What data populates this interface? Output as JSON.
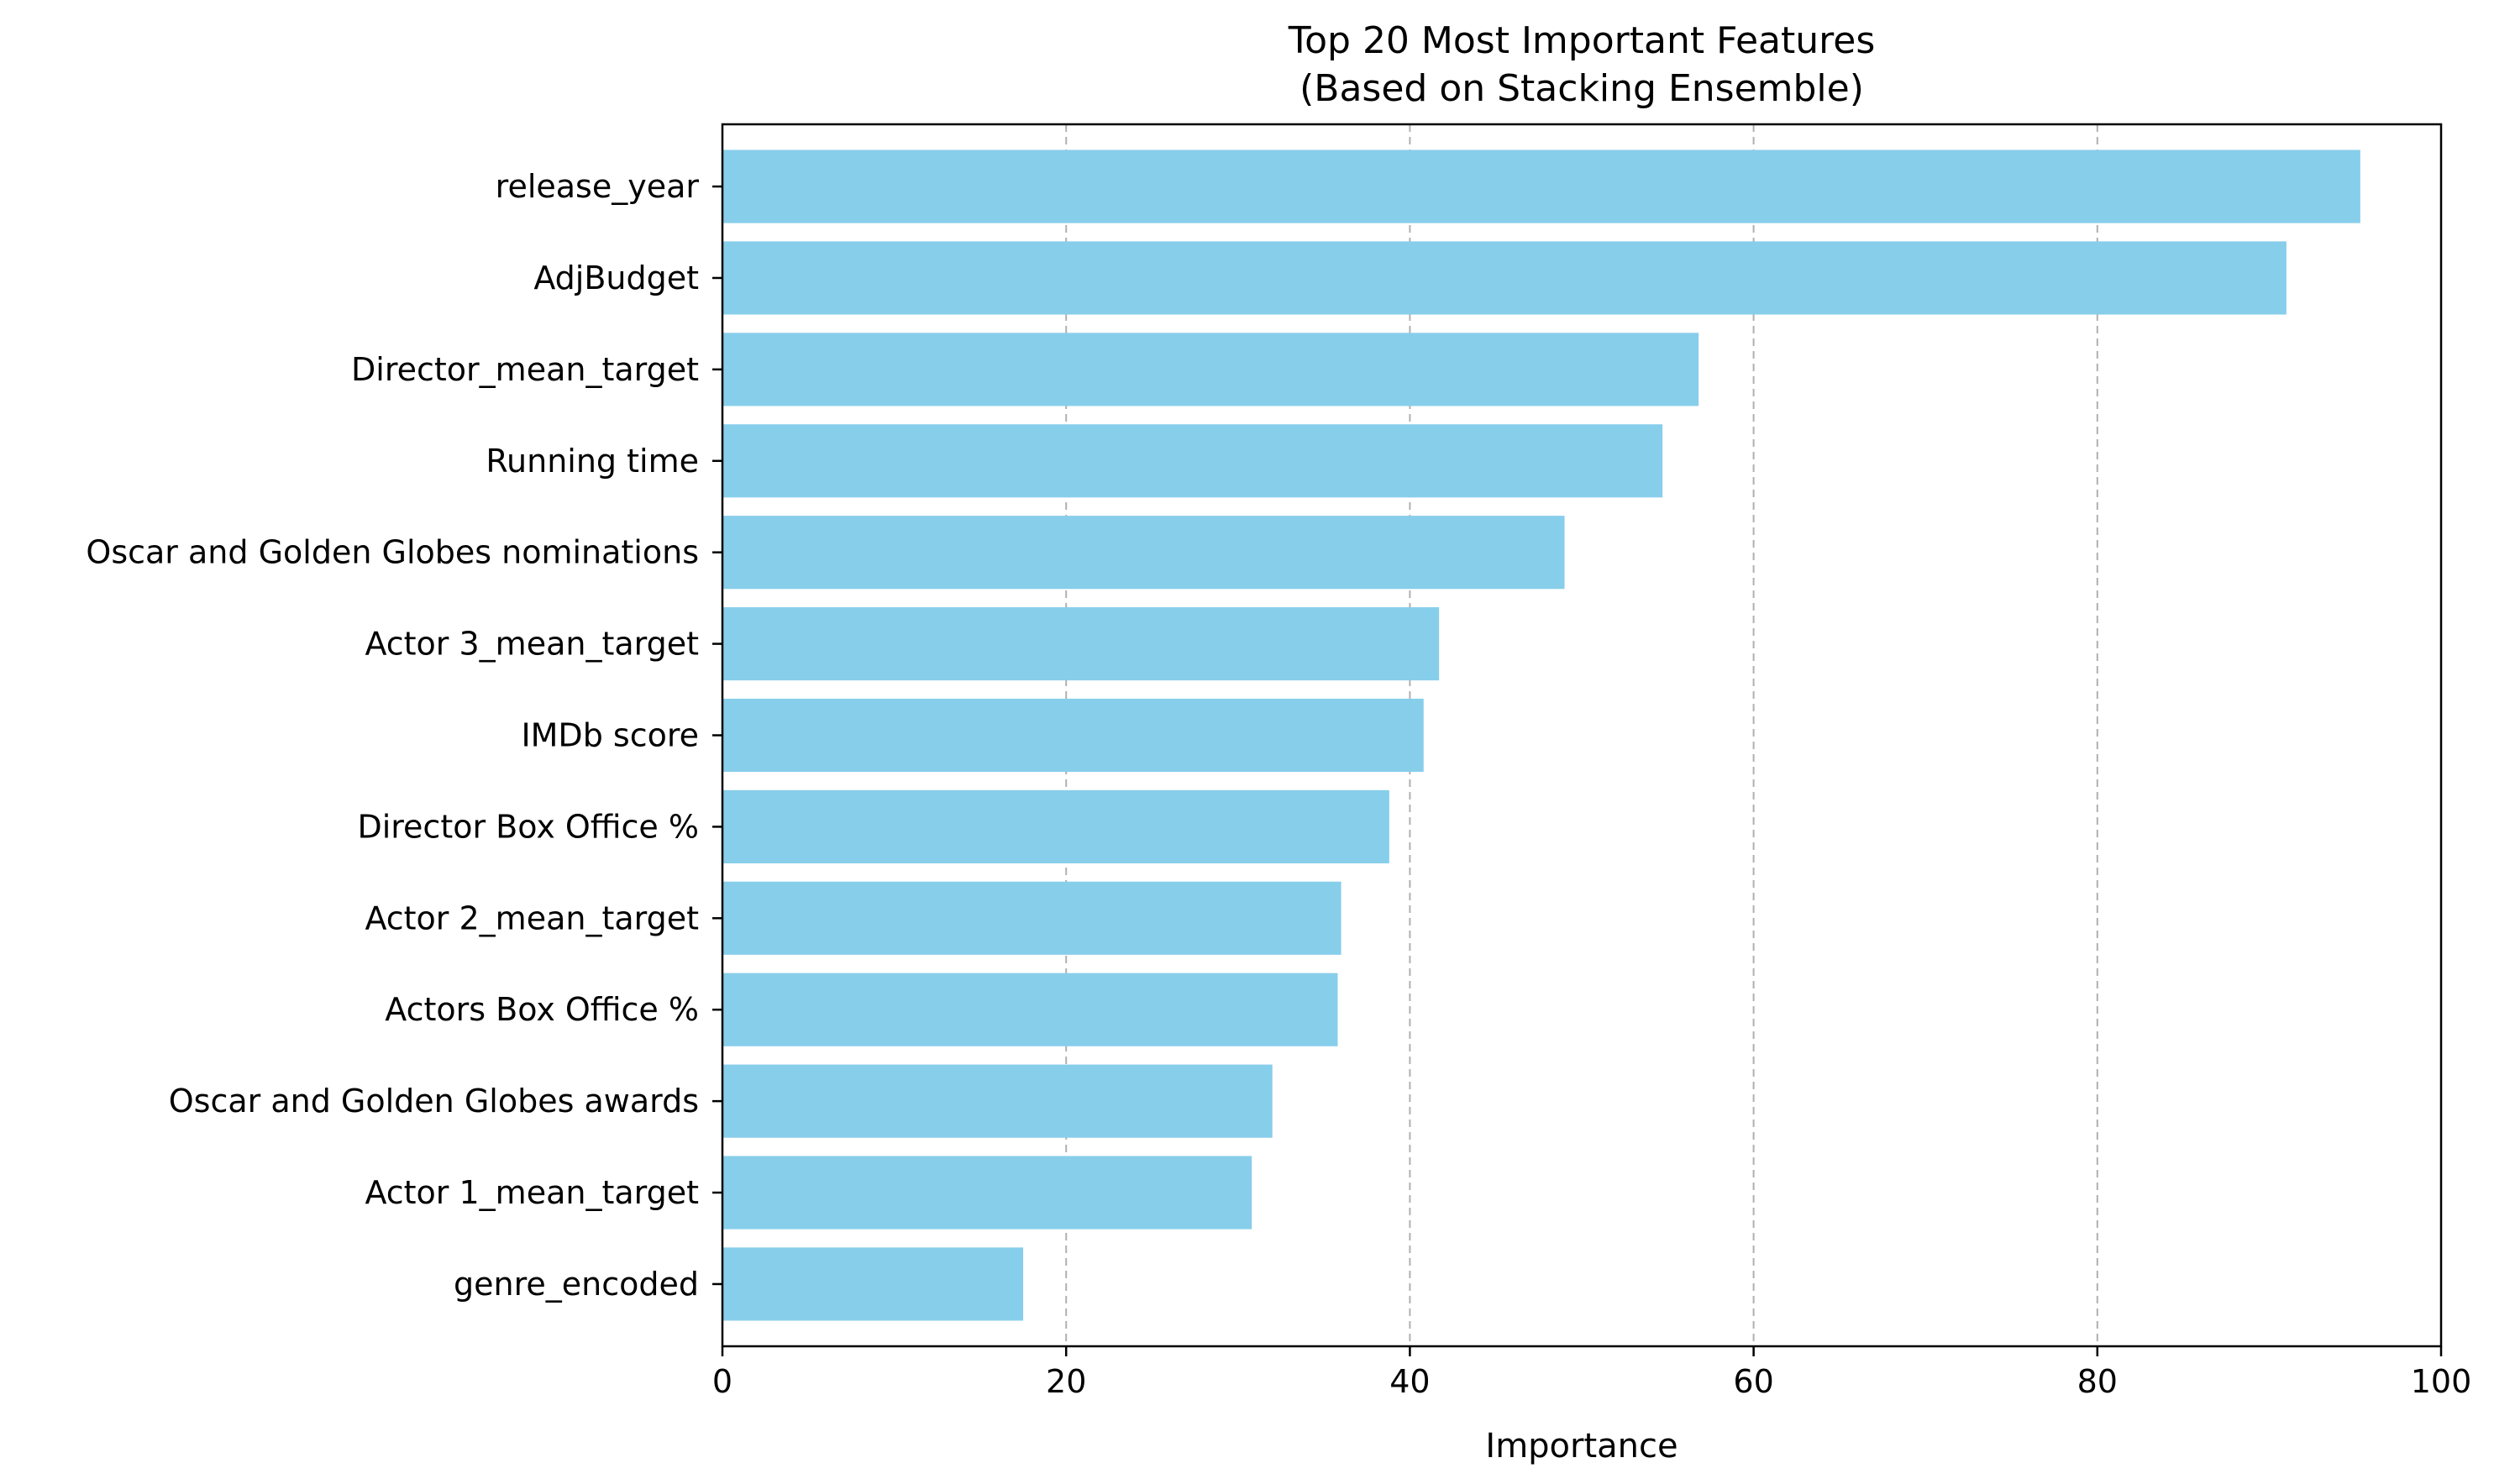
{
  "chart_data": {
    "type": "bar",
    "orientation": "horizontal",
    "title": "Top 20 Most Important Features",
    "subtitle": "(Based on Stacking Ensemble)",
    "xlabel": "Importance",
    "ylabel": "",
    "xlim": [
      0,
      100
    ],
    "x_ticks": [
      0,
      20,
      40,
      60,
      80,
      100
    ],
    "grid": "x-dashed",
    "bar_color": "#87CEEB",
    "grid_color": "#b0b0b0",
    "categories": [
      "release_year",
      "AdjBudget",
      "Director_mean_target",
      "Running time",
      "Oscar and Golden Globes nominations",
      "Actor 3_mean_target",
      "IMDb score",
      "Director Box Office %",
      "Actor 2_mean_target",
      "Actors Box Office %",
      "Oscar and Golden Globes awards",
      "Actor 1_mean_target",
      "genre_encoded"
    ],
    "values": [
      95.3,
      91.0,
      56.8,
      54.7,
      49.0,
      41.7,
      40.8,
      38.8,
      36.0,
      35.8,
      32.0,
      30.8,
      17.5
    ]
  }
}
